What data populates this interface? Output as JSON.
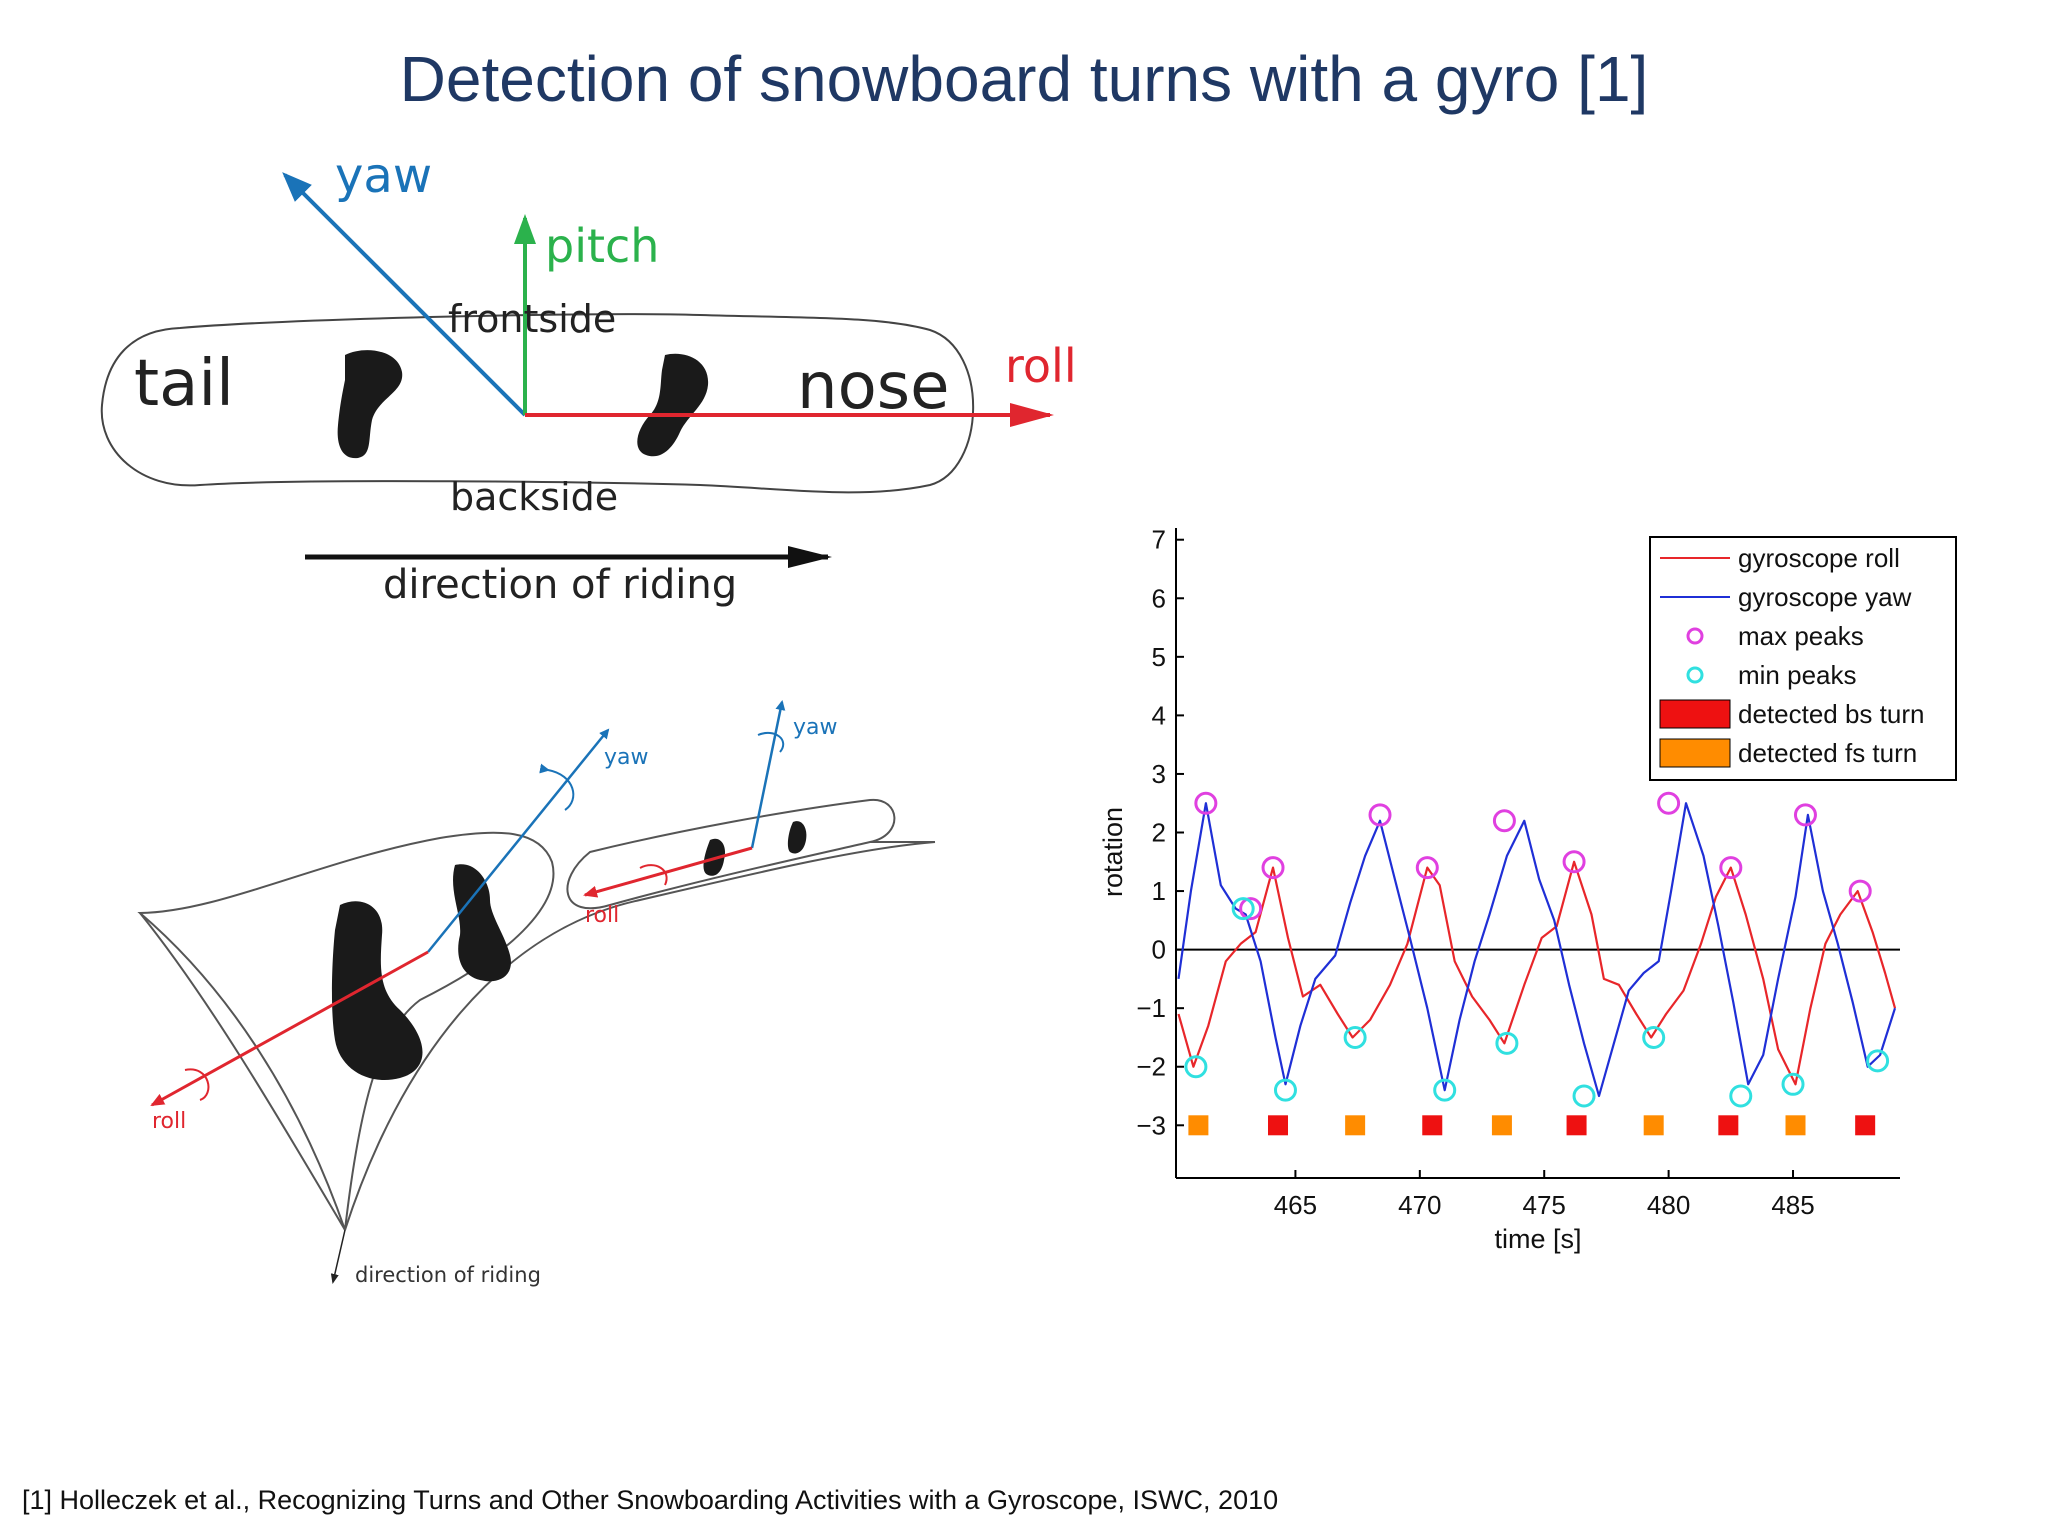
{
  "title": "Detection of snowboard turns with a gyro [1]",
  "footnote": "[1] Holleczek et al., Recognizing Turns and Other Snowboarding Activities with a Gyroscope, ISWC, 2010",
  "top_diagram": {
    "yaw": "yaw",
    "pitch": "pitch",
    "roll": "roll",
    "frontside": "frontside",
    "backside": "backside",
    "tail": "tail",
    "nose": "nose",
    "direction": "direction of riding",
    "colors": {
      "yaw": "#1a73b8",
      "pitch": "#2bb24c",
      "roll": "#e0262f"
    }
  },
  "bottom_diagram": {
    "yaw_near": "yaw",
    "yaw_far": "yaw",
    "roll_near": "roll",
    "roll_far": "roll",
    "direction": "direction of riding"
  },
  "chart_data": {
    "type": "line",
    "xlabel": "time [s]",
    "ylabel": "rotation",
    "xlim": [
      460.2,
      489.3
    ],
    "ylim": [
      -3.9,
      7.2
    ],
    "xticks": [
      465,
      470,
      475,
      480,
      485
    ],
    "yticks": [
      7,
      6,
      5,
      4,
      3,
      2,
      1,
      0,
      -1,
      -2,
      -3
    ],
    "ytick_labels": [
      "7",
      "6",
      "5",
      "4",
      "3",
      "2",
      "1",
      "0",
      "−1",
      "−2",
      "−3"
    ],
    "legend_position": "top-right",
    "legend": [
      {
        "label": "gyroscope roll",
        "kind": "line",
        "color": "#e8262a"
      },
      {
        "label": "gyroscope yaw",
        "kind": "line",
        "color": "#1f2fd6"
      },
      {
        "label": "max peaks",
        "kind": "marker",
        "color": "#e040e0"
      },
      {
        "label": "min peaks",
        "kind": "marker",
        "color": "#30e0e0"
      },
      {
        "label": "detected bs turn",
        "kind": "patch",
        "color": "#ee1111"
      },
      {
        "label": "detected fs turn",
        "kind": "patch",
        "color": "#ff8c00"
      }
    ],
    "series": [
      {
        "name": "gyroscope roll",
        "color": "#e8262a",
        "x": [
          460.3,
          460.9,
          461.5,
          462.2,
          462.8,
          463.4,
          464.1,
          464.7,
          465.3,
          466.0,
          466.7,
          467.3,
          468.0,
          468.8,
          469.5,
          470.3,
          470.8,
          471.4,
          472.1,
          472.8,
          473.4,
          474.2,
          474.9,
          475.5,
          476.2,
          476.9,
          477.4,
          478.0,
          478.7,
          479.3,
          479.9,
          480.6,
          481.3,
          481.9,
          482.5,
          483.1,
          483.8,
          484.4,
          485.1,
          485.7,
          486.3,
          486.9,
          487.6,
          488.2,
          488.7,
          489.1
        ],
        "y": [
          -1.1,
          -2.0,
          -1.3,
          -0.2,
          0.1,
          0.3,
          1.4,
          0.2,
          -0.8,
          -0.6,
          -1.1,
          -1.5,
          -1.2,
          -0.6,
          0.1,
          1.4,
          1.1,
          -0.2,
          -0.8,
          -1.2,
          -1.6,
          -0.6,
          0.2,
          0.4,
          1.5,
          0.6,
          -0.5,
          -0.6,
          -1.1,
          -1.5,
          -1.1,
          -0.7,
          0.1,
          0.9,
          1.4,
          0.6,
          -0.5,
          -1.7,
          -2.3,
          -1.0,
          0.1,
          0.6,
          1.0,
          0.3,
          -0.4,
          -1.0
        ]
      },
      {
        "name": "gyroscope yaw",
        "color": "#1f2fd6",
        "x": [
          460.3,
          460.8,
          461.4,
          462.0,
          462.6,
          463.0,
          463.6,
          464.2,
          464.6,
          465.2,
          465.8,
          466.6,
          467.2,
          467.8,
          468.4,
          469.0,
          469.6,
          470.3,
          471.0,
          471.6,
          472.2,
          472.8,
          473.5,
          474.2,
          474.8,
          475.4,
          476.0,
          476.6,
          477.2,
          477.8,
          478.4,
          479.0,
          479.6,
          480.1,
          480.7,
          481.4,
          482.0,
          482.6,
          483.2,
          483.8,
          484.4,
          485.1,
          485.6,
          486.2,
          486.8,
          487.4,
          488.0,
          488.5,
          489.1
        ],
        "y": [
          -0.5,
          1.0,
          2.5,
          1.1,
          0.7,
          0.6,
          -0.2,
          -1.5,
          -2.3,
          -1.3,
          -0.5,
          -0.1,
          0.8,
          1.6,
          2.2,
          1.2,
          0.2,
          -1.0,
          -2.4,
          -1.2,
          -0.2,
          0.6,
          1.6,
          2.2,
          1.2,
          0.5,
          -0.6,
          -1.6,
          -2.5,
          -1.6,
          -0.7,
          -0.4,
          -0.2,
          1.0,
          2.5,
          1.6,
          0.4,
          -0.9,
          -2.3,
          -1.8,
          -0.5,
          0.9,
          2.3,
          1.0,
          0.1,
          -0.9,
          -2.0,
          -1.8,
          -1.0
        ]
      }
    ],
    "max_peaks": {
      "x": [
        461.4,
        463.2,
        464.1,
        468.4,
        470.3,
        473.4,
        476.2,
        480.0,
        482.5,
        485.5,
        487.7
      ],
      "y": [
        2.5,
        0.7,
        1.4,
        2.3,
        1.4,
        2.2,
        1.5,
        2.5,
        1.4,
        2.3,
        1.0
      ]
    },
    "min_peaks": {
      "x": [
        461.0,
        462.9,
        464.6,
        467.4,
        471.0,
        473.5,
        476.6,
        479.4,
        482.9,
        485.0,
        488.4
      ],
      "y": [
        -2.0,
        0.7,
        -2.4,
        -1.5,
        -2.4,
        -1.6,
        -2.5,
        -1.5,
        -2.5,
        -2.3,
        -1.9
      ]
    },
    "detected_fs_turn": {
      "x": [
        461.1,
        467.4,
        473.3,
        479.4,
        485.1
      ],
      "y": -3
    },
    "detected_bs_turn": {
      "x": [
        464.3,
        470.5,
        476.3,
        482.4,
        487.9
      ],
      "y": -3
    }
  }
}
